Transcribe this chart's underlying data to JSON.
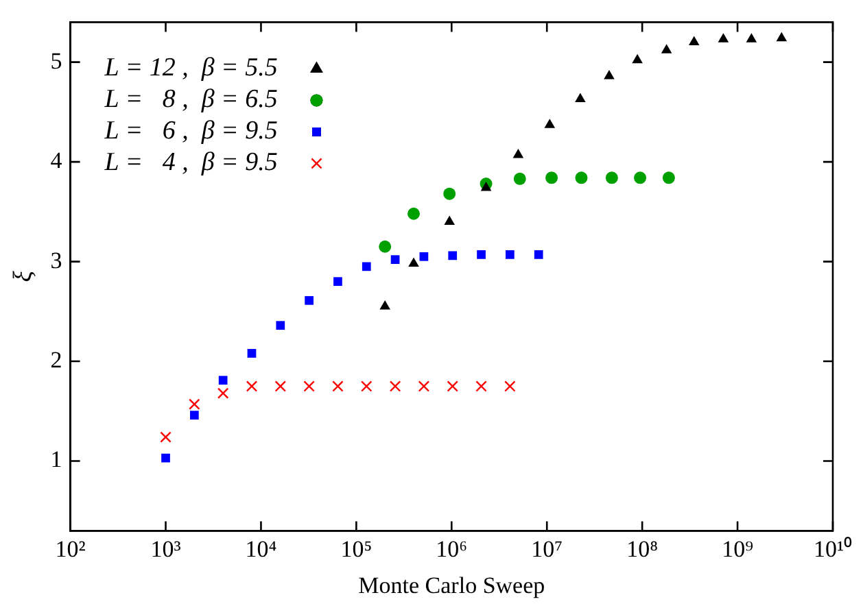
{
  "chart_data": {
    "type": "scatter",
    "xlabel": "Monte Carlo Sweep",
    "ylabel": "ξ",
    "log": "x",
    "grid": false,
    "legend": "top left",
    "xlim": [
      100,
      10000000000
    ],
    "ylim": [
      0.3,
      5.4
    ],
    "xticks": [
      {
        "value": 100,
        "label": "10²"
      },
      {
        "value": 1000,
        "label": "10³"
      },
      {
        "value": 10000,
        "label": "10⁴"
      },
      {
        "value": 100000,
        "label": "10⁵"
      },
      {
        "value": 1000000,
        "label": "10⁶"
      },
      {
        "value": 10000000,
        "label": "10⁷"
      },
      {
        "value": 100000000,
        "label": "10⁸"
      },
      {
        "value": 1000000000,
        "label": "10⁹"
      },
      {
        "value": 10000000000,
        "label": "10¹⁰"
      }
    ],
    "yticks": [
      1,
      2,
      3,
      4,
      5
    ],
    "series": [
      {
        "name": "L = 12 ,  β = 5.5",
        "color": "#000000",
        "marker": "triangle",
        "x": [
          200000,
          400000,
          950000,
          2300000,
          5000000,
          10700000,
          22400000,
          45000000,
          89000000,
          180000000,
          350000000,
          710000000,
          1400000000,
          2900000000
        ],
        "values": [
          2.55,
          2.98,
          3.4,
          3.74,
          4.07,
          4.37,
          4.63,
          4.86,
          5.02,
          5.12,
          5.2,
          5.23,
          5.23,
          5.24
        ]
      },
      {
        "name": "L =   8 ,  β = 6.5",
        "color": "#00a000",
        "marker": "circle",
        "x": [
          200000,
          400000,
          950000,
          2300000,
          5200000,
          11200000,
          23000000,
          48000000,
          95000000,
          190000000
        ],
        "values": [
          3.15,
          3.48,
          3.68,
          3.78,
          3.83,
          3.84,
          3.84,
          3.84,
          3.84,
          3.84
        ]
      },
      {
        "name": "L =   6 ,  β = 9.5",
        "color": "#0000ff",
        "marker": "square",
        "x": [
          1000,
          2000,
          4000,
          8000,
          16000,
          32000,
          64000,
          128000,
          256000,
          512000,
          1024000,
          2048000,
          4096000,
          8192000
        ],
        "values": [
          1.03,
          1.46,
          1.81,
          2.08,
          2.36,
          2.61,
          2.8,
          2.95,
          3.02,
          3.05,
          3.06,
          3.07,
          3.07,
          3.07
        ]
      },
      {
        "name": "L =   4 ,  β = 9.5",
        "color": "#ff0000",
        "marker": "cross",
        "x": [
          1000,
          2000,
          4000,
          8000,
          16000,
          32000,
          64000,
          128000,
          256000,
          512000,
          1024000,
          2048000,
          4096000
        ],
        "values": [
          1.24,
          1.57,
          1.68,
          1.75,
          1.75,
          1.75,
          1.75,
          1.75,
          1.75,
          1.75,
          1.75,
          1.75,
          1.75
        ]
      }
    ]
  }
}
